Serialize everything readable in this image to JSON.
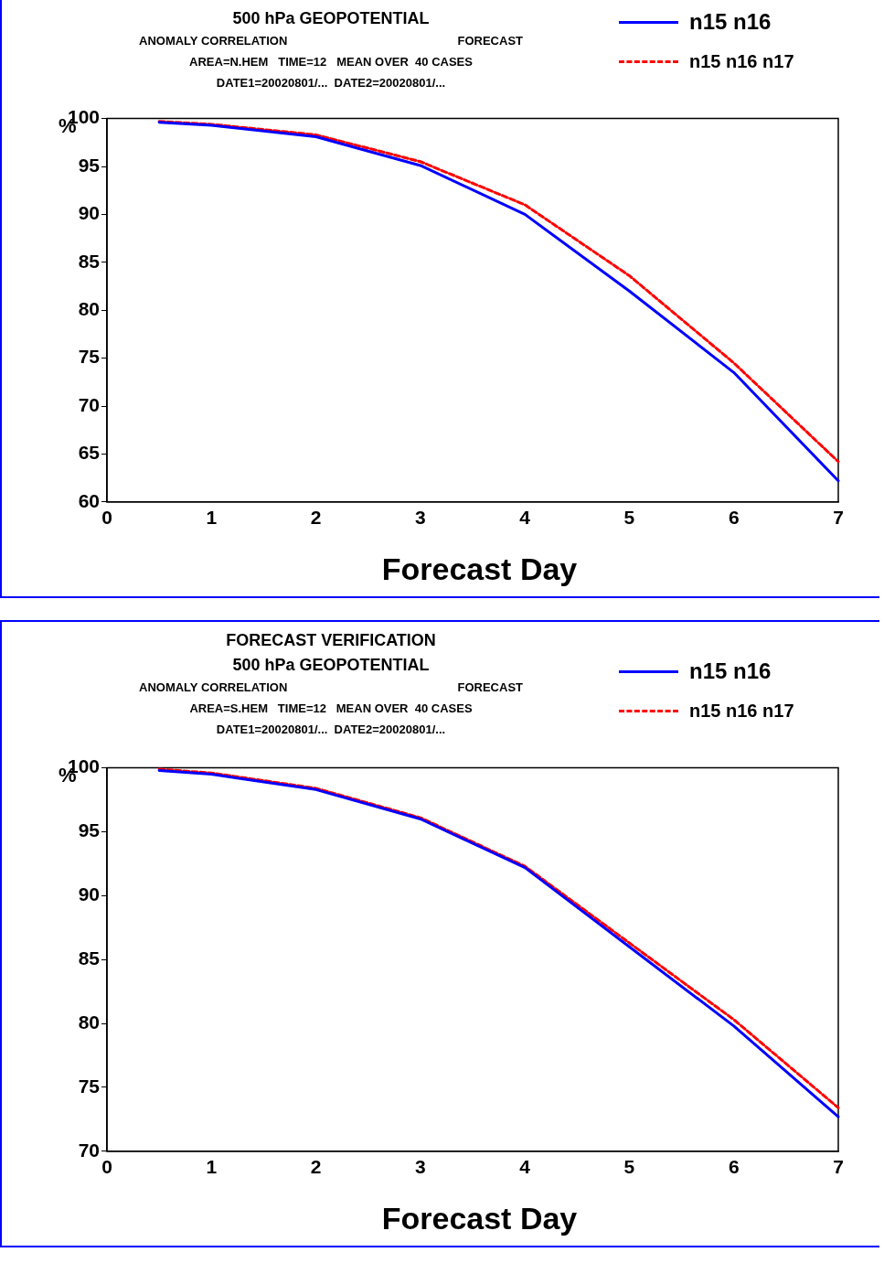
{
  "chart_data": [
    {
      "type": "line",
      "title": "500 hPa GEOPOTENTIAL",
      "annotations": [
        "ANOMALY CORRELATION",
        "FORECAST",
        "AREA=N.HEM   TIME=12   MEAN OVER  40 CASES",
        "DATE1=20020801/...  DATE2=20020801/..."
      ],
      "xlabel": "Forecast Day",
      "ylabel": "%",
      "x": [
        0.5,
        1,
        2,
        3,
        4,
        5,
        6,
        7
      ],
      "xlim": [
        0,
        7
      ],
      "xticks": [
        0,
        1,
        2,
        3,
        4,
        5,
        6,
        7
      ],
      "ylim": [
        60,
        100
      ],
      "yticks": [
        60,
        65,
        70,
        75,
        80,
        85,
        90,
        95,
        100
      ],
      "grid": false,
      "legend": "top right",
      "marker": "none",
      "series": [
        {
          "name": "n15 n16",
          "color": "#0000ff",
          "line_style": "solid",
          "values": [
            99.6,
            99.3,
            98.1,
            95.1,
            90.0,
            82.0,
            73.5,
            62.2
          ]
        },
        {
          "name": "n15 n16 n17",
          "color": "#ff0000",
          "line_style": "dashed",
          "values": [
            99.7,
            99.4,
            98.3,
            95.5,
            91.0,
            83.6,
            74.5,
            64.2
          ]
        }
      ]
    },
    {
      "type": "line",
      "title": "FORECAST VERIFICATION",
      "subtitle": "500 hPa GEOPOTENTIAL",
      "annotations": [
        "ANOMALY CORRELATION",
        "FORECAST",
        "AREA=S.HEM   TIME=12   MEAN OVER  40 CASES",
        "DATE1=20020801/...  DATE2=20020801/..."
      ],
      "xlabel": "Forecast Day",
      "ylabel": "%",
      "x": [
        0.5,
        1,
        2,
        3,
        4,
        5,
        6,
        7
      ],
      "xlim": [
        0,
        7
      ],
      "xticks": [
        0,
        1,
        2,
        3,
        4,
        5,
        6,
        7
      ],
      "ylim": [
        70,
        100
      ],
      "yticks": [
        70,
        75,
        80,
        85,
        90,
        95,
        100
      ],
      "grid": false,
      "legend": "top right",
      "marker": "none",
      "series": [
        {
          "name": "n15 n16",
          "color": "#0000ff",
          "line_style": "solid",
          "values": [
            99.8,
            99.5,
            98.3,
            96.0,
            92.2,
            86.0,
            79.8,
            72.7
          ]
        },
        {
          "name": "n15 n16 n17",
          "color": "#ff0000",
          "line_style": "dashed",
          "values": [
            99.9,
            99.6,
            98.4,
            96.1,
            92.3,
            86.3,
            80.3,
            73.4
          ]
        }
      ]
    }
  ]
}
